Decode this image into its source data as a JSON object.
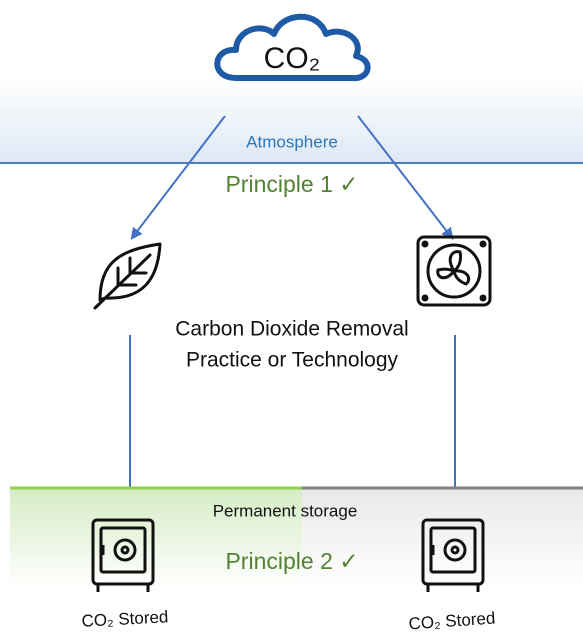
{
  "cloud": {
    "label": "CO₂"
  },
  "atmosphere": {
    "label": "Atmosphere",
    "principle": "Principle 1 ✓"
  },
  "removal": {
    "lines": [
      "Carbon Dioxide Removal",
      "Practice or Technology"
    ]
  },
  "storage": {
    "label": "Permanent storage",
    "principle": "Principle 2 ✓",
    "stored": [
      "CO₂ Stored",
      "CO₂ Stored"
    ]
  }
}
